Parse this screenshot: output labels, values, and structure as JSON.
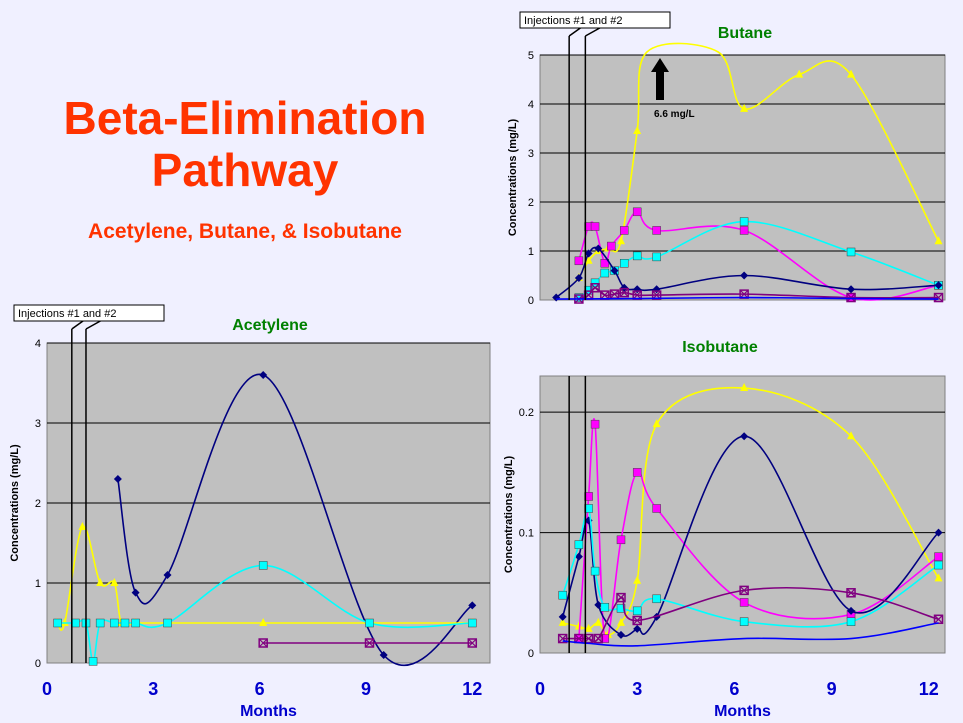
{
  "slide": {
    "title_line1": "Beta-Elimination",
    "title_line2": "Pathway",
    "subtitle": "Acetylene, Butane, & Isobutane"
  },
  "colors": {
    "background": "#f0f0ff",
    "plot_area": "#c0c0c0",
    "title": "#ff3300",
    "chart_title": "#008000",
    "axis_text": "#0000cc",
    "navy": "#000080",
    "magenta": "#ff00ff",
    "yellow": "#ffff00",
    "cyan": "#00ffff",
    "purple": "#800080",
    "blue": "#0000ff"
  },
  "chart_data": [
    {
      "type": "line",
      "title": "Acetylene",
      "xlabel": "Months",
      "ylabel": "Concentrations (mg/L)",
      "xlim": [
        0,
        12.5
      ],
      "ylim": [
        0,
        4
      ],
      "xticks": [
        0,
        3,
        6,
        9,
        12
      ],
      "yticks": [
        0,
        1,
        2,
        3,
        4
      ],
      "grid": "horizontal",
      "annotation": {
        "text": "Injections #1 and #2",
        "x": [
          0.7,
          1.1
        ]
      },
      "series": [
        {
          "color": "navy",
          "marker": "diamond",
          "x": [
            2.0,
            2.5,
            3.4,
            6.1,
            9.5,
            12.0
          ],
          "y": [
            2.3,
            0.88,
            1.1,
            3.6,
            0.1,
            0.72
          ]
        },
        {
          "color": "yellow",
          "marker": "triangle",
          "x": [
            0.3,
            0.5,
            1.0,
            1.5,
            1.9,
            2.1,
            2.5,
            3.4,
            6.1,
            9.1,
            12.0
          ],
          "y": [
            0.5,
            0.5,
            1.7,
            1.0,
            1.0,
            0.5,
            0.5,
            0.5,
            0.5,
            0.5,
            0.5
          ]
        },
        {
          "color": "cyan",
          "marker": "square",
          "x": [
            0.3,
            0.8,
            1.1,
            1.3,
            1.5,
            1.9,
            2.2,
            2.5,
            3.4,
            6.1,
            9.1,
            12.0
          ],
          "y": [
            0.5,
            0.5,
            0.5,
            0.02,
            0.5,
            0.5,
            0.5,
            0.5,
            0.5,
            1.22,
            0.5,
            0.5
          ]
        },
        {
          "color": "purple",
          "marker": "boxed-x",
          "x": [
            6.1,
            9.1,
            12.0
          ],
          "y": [
            0.25,
            0.25,
            0.25
          ]
        }
      ]
    },
    {
      "type": "line",
      "title": "Butane",
      "xlabel": "",
      "ylabel": "Concentrations (mg/L)",
      "xlim": [
        0,
        12.5
      ],
      "ylim": [
        0,
        5
      ],
      "yticks": [
        0,
        1,
        2,
        3,
        4,
        5
      ],
      "grid": "horizontal",
      "annotation": {
        "text": "Injections #1 and #2",
        "x": [
          0.9,
          1.4
        ]
      },
      "arrow_label": "6.6 mg/L",
      "series": [
        {
          "color": "yellow",
          "marker": "triangle",
          "x": [
            1.2,
            1.5,
            1.8,
            2.1,
            2.5,
            3.0,
            3.3,
            5.5,
            6.3,
            8.0,
            9.6,
            12.3
          ],
          "y": [
            0.45,
            0.8,
            1.0,
            1.05,
            1.2,
            3.45,
            5.5,
            5.5,
            3.9,
            4.6,
            4.6,
            1.2
          ]
        },
        {
          "color": "magenta",
          "marker": "square",
          "x": [
            1.2,
            1.5,
            1.7,
            2.0,
            2.2,
            2.6,
            3.0,
            3.6,
            6.3,
            9.6,
            12.3
          ],
          "y": [
            0.8,
            1.5,
            1.5,
            0.75,
            1.1,
            1.42,
            1.8,
            1.42,
            1.42,
            0.05,
            0.3
          ]
        },
        {
          "color": "cyan",
          "marker": "square",
          "x": [
            1.2,
            1.5,
            1.7,
            2.0,
            2.3,
            2.6,
            3.0,
            3.6,
            6.3,
            9.6,
            12.3
          ],
          "y": [
            0.05,
            0.2,
            0.35,
            0.55,
            0.6,
            0.75,
            0.9,
            0.88,
            1.6,
            0.98,
            0.3
          ]
        },
        {
          "color": "navy",
          "marker": "diamond",
          "x": [
            0.5,
            1.2,
            1.5,
            1.8,
            2.3,
            2.6,
            3.0,
            3.6,
            6.3,
            9.6,
            12.3
          ],
          "y": [
            0.05,
            0.45,
            0.95,
            1.05,
            0.6,
            0.25,
            0.22,
            0.22,
            0.5,
            0.22,
            0.3
          ]
        },
        {
          "color": "purple",
          "marker": "boxed-x",
          "x": [
            1.2,
            1.5,
            1.7,
            2.0,
            2.3,
            2.6,
            3.0,
            3.6,
            6.3,
            9.6,
            12.3
          ],
          "y": [
            0.02,
            0.1,
            0.25,
            0.1,
            0.12,
            0.15,
            0.1,
            0.1,
            0.12,
            0.05,
            0.05
          ]
        },
        {
          "color": "blue",
          "marker": "none",
          "x": [
            0.5,
            3.0,
            6.3,
            9.6,
            12.3
          ],
          "y": [
            0.02,
            0.03,
            0.05,
            0.03,
            0.02
          ]
        }
      ]
    },
    {
      "type": "line",
      "title": "Isobutane",
      "xlabel": "Months",
      "ylabel": "Concentrations (mg/L)",
      "xlim": [
        0,
        12.5
      ],
      "ylim": [
        0,
        0.23
      ],
      "xticks": [
        0,
        3,
        6,
        9,
        12
      ],
      "yticks": [
        0,
        0.1,
        0.2
      ],
      "ytick_labels": [
        "0",
        "0.1",
        "0.2"
      ],
      "grid": "horizontal",
      "series": [
        {
          "color": "yellow",
          "marker": "triangle",
          "x": [
            0.7,
            1.2,
            1.5,
            1.8,
            2.1,
            2.5,
            3.0,
            3.6,
            6.3,
            9.6,
            12.3
          ],
          "y": [
            0.025,
            0.022,
            0.02,
            0.025,
            0.015,
            0.025,
            0.06,
            0.19,
            0.22,
            0.18,
            0.062
          ]
        },
        {
          "color": "magenta",
          "marker": "square",
          "x": [
            1.2,
            1.5,
            1.7,
            2.0,
            2.5,
            3.0,
            3.6,
            6.3,
            9.6,
            12.3
          ],
          "y": [
            0.012,
            0.13,
            0.19,
            0.012,
            0.094,
            0.15,
            0.12,
            0.042,
            0.032,
            0.08
          ]
        },
        {
          "color": "navy",
          "marker": "diamond",
          "x": [
            0.7,
            1.2,
            1.5,
            1.8,
            2.5,
            3.0,
            3.6,
            6.3,
            9.6,
            12.3
          ],
          "y": [
            0.03,
            0.08,
            0.11,
            0.04,
            0.015,
            0.02,
            0.03,
            0.18,
            0.035,
            0.1
          ]
        },
        {
          "color": "cyan",
          "marker": "square",
          "x": [
            0.7,
            1.2,
            1.5,
            1.7,
            2.0,
            2.5,
            3.0,
            3.6,
            6.3,
            9.6,
            12.3
          ],
          "y": [
            0.048,
            0.09,
            0.12,
            0.068,
            0.038,
            0.037,
            0.035,
            0.045,
            0.026,
            0.026,
            0.073
          ]
        },
        {
          "color": "purple",
          "marker": "boxed-x",
          "x": [
            0.7,
            1.2,
            1.5,
            1.8,
            2.5,
            3.0,
            6.3,
            9.6,
            12.3
          ],
          "y": [
            0.012,
            0.012,
            0.012,
            0.012,
            0.046,
            0.027,
            0.052,
            0.05,
            0.028
          ]
        },
        {
          "color": "blue",
          "marker": "none",
          "x": [
            0.7,
            1.5,
            3.0,
            6.3,
            9.6,
            12.3
          ],
          "y": [
            0.01,
            0.008,
            0.006,
            0.012,
            0.012,
            0.025
          ]
        }
      ]
    }
  ]
}
